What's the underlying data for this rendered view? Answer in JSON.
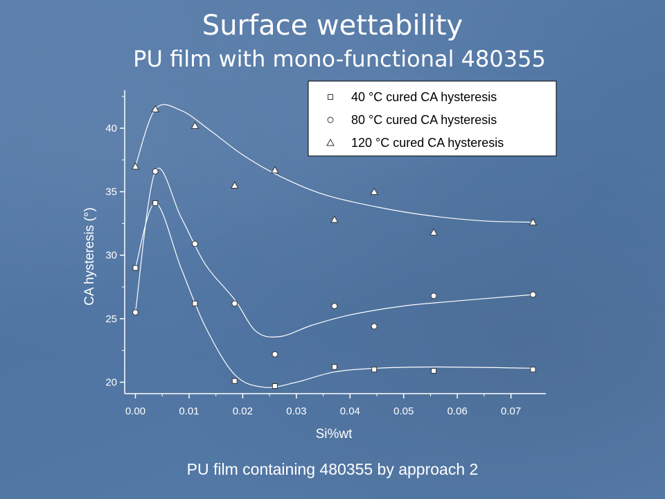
{
  "slide": {
    "title": "Surface wettability",
    "subtitle": "PU film with mono-functional 480355",
    "caption": "PU film containing 480355 by approach 2"
  },
  "colors": {
    "background": "#5277a5",
    "ink": "#ffffff"
  },
  "chart_data": {
    "type": "scatter",
    "xlabel": "Si%wt",
    "ylabel": "CA hysteresis (°)",
    "xlim": [
      -0.002,
      0.0765
    ],
    "ylim": [
      19.1,
      43
    ],
    "xticks": [
      0.0,
      0.01,
      0.02,
      0.03,
      0.04,
      0.05,
      0.06,
      0.07
    ],
    "xtick_labels": [
      "0.00",
      "0.01",
      "0.02",
      "0.03",
      "0.04",
      "0.05",
      "0.06",
      "0.07"
    ],
    "yticks": [
      20,
      25,
      30,
      35,
      40
    ],
    "ytick_labels": [
      "20",
      "25",
      "30",
      "35",
      "40"
    ],
    "legend_position": "top-right",
    "series": [
      {
        "name": "40 °C cured CA hysteresis",
        "marker": "square",
        "x": [
          0.0,
          0.0037,
          0.0111,
          0.0185,
          0.026,
          0.0371,
          0.0445,
          0.0556,
          0.0741
        ],
        "y": [
          29.0,
          34.1,
          26.2,
          20.1,
          19.7,
          21.2,
          21.0,
          20.9,
          21.0
        ],
        "fit": [
          [
            0.0,
            29.0
          ],
          [
            0.0037,
            34.1
          ],
          [
            0.0085,
            29.0
          ],
          [
            0.013,
            24.4
          ],
          [
            0.0185,
            20.6
          ],
          [
            0.024,
            19.6
          ],
          [
            0.03,
            20.0
          ],
          [
            0.037,
            20.8
          ],
          [
            0.045,
            21.1
          ],
          [
            0.056,
            21.2
          ],
          [
            0.0741,
            21.1
          ]
        ]
      },
      {
        "name": "80 °C cured CA hysteresis",
        "marker": "circle",
        "x": [
          0.0,
          0.0037,
          0.0111,
          0.0185,
          0.026,
          0.0371,
          0.0445,
          0.0556,
          0.0741
        ],
        "y": [
          25.5,
          36.6,
          30.9,
          26.2,
          22.2,
          26.0,
          24.4,
          26.8,
          26.9
        ],
        "fit": [
          [
            0.0,
            25.5
          ],
          [
            0.0037,
            36.6
          ],
          [
            0.0085,
            33.0
          ],
          [
            0.013,
            29.3
          ],
          [
            0.0185,
            26.5
          ],
          [
            0.0225,
            24.0
          ],
          [
            0.027,
            23.6
          ],
          [
            0.033,
            24.5
          ],
          [
            0.04,
            25.3
          ],
          [
            0.05,
            26.0
          ],
          [
            0.06,
            26.4
          ],
          [
            0.0741,
            26.9
          ]
        ]
      },
      {
        "name": "120 °C cured CA hysteresis",
        "marker": "triangle",
        "x": [
          0.0,
          0.0037,
          0.0111,
          0.0185,
          0.026,
          0.0371,
          0.0445,
          0.0556,
          0.0741
        ],
        "y": [
          37.0,
          41.5,
          40.2,
          35.5,
          36.7,
          32.8,
          35.0,
          31.8,
          32.6
        ],
        "fit": [
          [
            0.0,
            37.0
          ],
          [
            0.0037,
            41.5
          ],
          [
            0.0085,
            41.4
          ],
          [
            0.014,
            39.8
          ],
          [
            0.02,
            37.9
          ],
          [
            0.027,
            36.2
          ],
          [
            0.035,
            34.8
          ],
          [
            0.045,
            33.8
          ],
          [
            0.055,
            33.1
          ],
          [
            0.065,
            32.7
          ],
          [
            0.0741,
            32.6
          ]
        ]
      }
    ]
  }
}
